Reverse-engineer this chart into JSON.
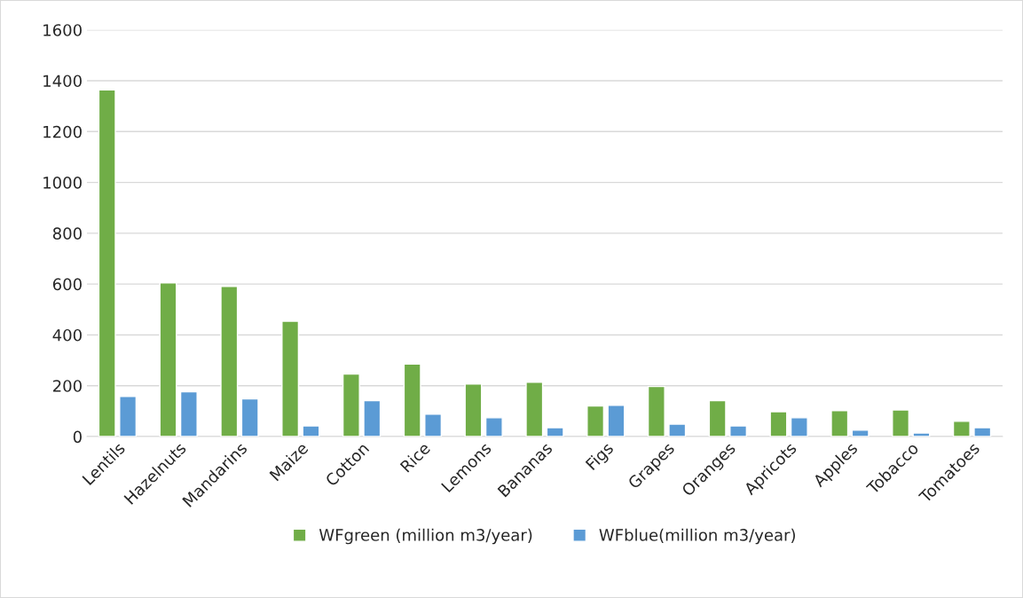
{
  "chart_data": {
    "type": "bar",
    "categories": [
      "Lentils",
      "Hazelnuts",
      "Mandarins",
      "Maize",
      "Cotton",
      "Rice",
      "Lemons",
      "Bananas",
      "Figs",
      "Grapes",
      "Oranges",
      "Apricots",
      "Apples",
      "Tobacco",
      "Tomatoes"
    ],
    "series": [
      {
        "name": "WFgreen (million m3/year)",
        "color": "#70ad47",
        "values": [
          1364,
          605,
          591,
          454,
          246,
          285,
          207,
          214,
          120,
          197,
          141,
          98,
          102,
          105,
          60
        ]
      },
      {
        "name": "WFblue(million m3/year)",
        "color": "#5b9bd5",
        "values": [
          158,
          176,
          148,
          42,
          141,
          88,
          74,
          35,
          123,
          49,
          42,
          74,
          25,
          14,
          35
        ]
      }
    ],
    "ylim": [
      0,
      1600
    ],
    "yticks": [
      0,
      200,
      400,
      600,
      800,
      1000,
      1200,
      1400,
      1600
    ],
    "grid": "y",
    "legend": "bottom"
  }
}
